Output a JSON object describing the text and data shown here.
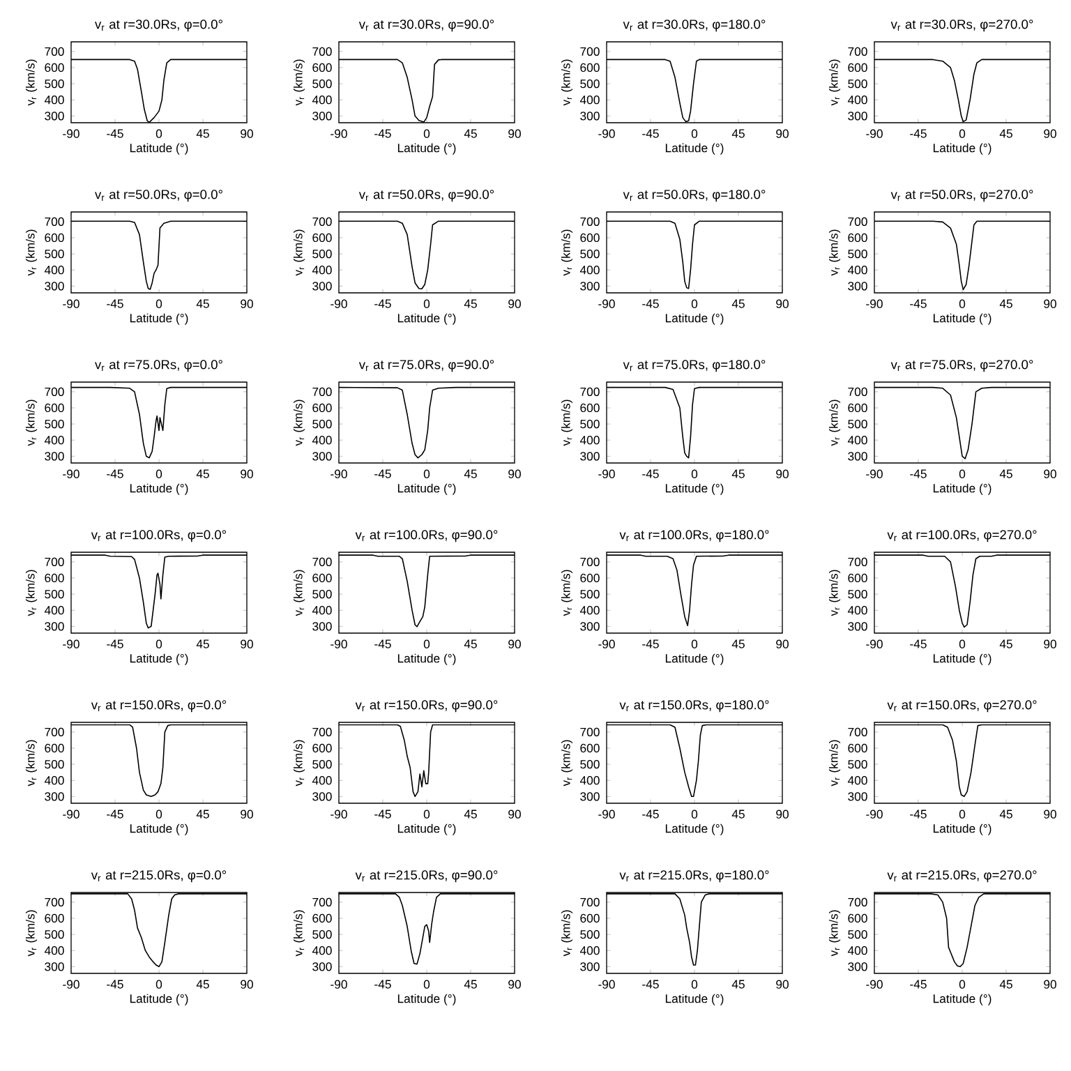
{
  "chart_data": [
    {
      "type": "line",
      "title": "v$_{r}$ at r=30.0Rs, φ=0.0°",
      "xlabel": "Latitude (°)",
      "ylabel": "v$_{r}$ (km/s)",
      "color": "#000000",
      "xlim": [
        -90,
        90
      ],
      "xticks": [
        -90,
        -45,
        0,
        45,
        90
      ],
      "ylim": [
        258,
        760
      ],
      "yticks": [
        300,
        400,
        500,
        600,
        700
      ],
      "x": [
        -90,
        -30,
        -25,
        -22,
        -18,
        -15,
        -12,
        -10,
        -5,
        0,
        3,
        5,
        8,
        12,
        90
      ],
      "values": [
        650,
        650,
        640,
        590,
        450,
        340,
        270,
        260,
        290,
        330,
        400,
        520,
        630,
        650,
        650
      ]
    },
    {
      "type": "line",
      "title": "v$_{r}$ at r=30.0Rs, φ=90.0°",
      "xlabel": "Latitude (°)",
      "ylabel": "v$_{r}$ (km/s)",
      "color": "#000000",
      "xlim": [
        -90,
        90
      ],
      "xticks": [
        -90,
        -45,
        0,
        45,
        90
      ],
      "ylim": [
        258,
        760
      ],
      "yticks": [
        300,
        400,
        500,
        600,
        700
      ],
      "x": [
        -90,
        -30,
        -25,
        -20,
        -15,
        -12,
        -8,
        -3,
        0,
        3,
        6,
        8,
        12,
        15,
        90
      ],
      "values": [
        650,
        650,
        630,
        540,
        400,
        300,
        272,
        262,
        290,
        360,
        420,
        620,
        648,
        650,
        650
      ]
    },
    {
      "type": "line",
      "title": "v$_{r}$ at r=30.0Rs, φ=180.0°",
      "xlabel": "Latitude (°)",
      "ylabel": "v$_{r}$ (km/s)",
      "color": "#000000",
      "xlim": [
        -90,
        90
      ],
      "xticks": [
        -90,
        -45,
        0,
        45,
        90
      ],
      "ylim": [
        258,
        760
      ],
      "yticks": [
        300,
        400,
        500,
        600,
        700
      ],
      "x": [
        -90,
        -30,
        -25,
        -20,
        -15,
        -12,
        -9,
        -6,
        -4,
        -1,
        2,
        5,
        90
      ],
      "values": [
        650,
        650,
        640,
        540,
        380,
        290,
        265,
        270,
        330,
        500,
        640,
        650,
        650
      ]
    },
    {
      "type": "line",
      "title": "v$_{r}$ at r=30.0Rs, φ=270.0°",
      "xlabel": "Latitude (°)",
      "ylabel": "v$_{r}$ (km/s)",
      "color": "#000000",
      "xlim": [
        -90,
        90
      ],
      "xticks": [
        -90,
        -45,
        0,
        45,
        90
      ],
      "ylim": [
        258,
        760
      ],
      "yticks": [
        300,
        400,
        500,
        600,
        700
      ],
      "x": [
        -90,
        -30,
        -20,
        -12,
        -8,
        -4,
        -1,
        1,
        4,
        8,
        12,
        15,
        20,
        90
      ],
      "values": [
        650,
        650,
        640,
        600,
        520,
        400,
        300,
        265,
        275,
        400,
        560,
        630,
        650,
        650
      ]
    },
    {
      "type": "line",
      "title": "v$_{r}$ at r=50.0Rs, φ=0.0°",
      "xlabel": "Latitude (°)",
      "ylabel": "v$_{r}$ (km/s)",
      "color": "#000000",
      "xlim": [
        -90,
        90
      ],
      "xticks": [
        -90,
        -45,
        0,
        45,
        90
      ],
      "ylim": [
        258,
        760
      ],
      "yticks": [
        300,
        400,
        500,
        600,
        700
      ],
      "x": [
        -90,
        -30,
        -25,
        -20,
        -16,
        -13,
        -11,
        -9,
        -7,
        -5,
        -3,
        -1,
        1,
        5,
        12,
        90
      ],
      "values": [
        703,
        703,
        695,
        620,
        450,
        330,
        285,
        280,
        320,
        380,
        400,
        430,
        660,
        690,
        703,
        703
      ]
    },
    {
      "type": "line",
      "title": "v$_{r}$ at r=50.0Rs, φ=90.0°",
      "xlabel": "Latitude (°)",
      "ylabel": "v$_{r}$ (km/s)",
      "color": "#000000",
      "xlim": [
        -90,
        90
      ],
      "xticks": [
        -90,
        -45,
        0,
        45,
        90
      ],
      "ylim": [
        258,
        760
      ],
      "yticks": [
        300,
        400,
        500,
        600,
        700
      ],
      "x": [
        -90,
        -30,
        -25,
        -20,
        -15,
        -12,
        -8,
        -5,
        -2,
        1,
        4,
        6,
        12,
        90
      ],
      "values": [
        703,
        703,
        690,
        620,
        420,
        320,
        285,
        283,
        310,
        400,
        560,
        680,
        703,
        703
      ]
    },
    {
      "type": "line",
      "title": "v$_{r}$ at r=50.0Rs, φ=180.0°",
      "xlabel": "Latitude (°)",
      "ylabel": "v$_{r}$ (km/s)",
      "color": "#000000",
      "xlim": [
        -90,
        90
      ],
      "xticks": [
        -90,
        -45,
        0,
        45,
        90
      ],
      "ylim": [
        258,
        760
      ],
      "yticks": [
        300,
        400,
        500,
        600,
        700
      ],
      "x": [
        -90,
        -25,
        -20,
        -15,
        -12,
        -10,
        -8,
        -6,
        -4,
        -2,
        0,
        5,
        90
      ],
      "values": [
        703,
        703,
        690,
        590,
        450,
        330,
        290,
        285,
        400,
        560,
        680,
        703,
        703
      ]
    },
    {
      "type": "line",
      "title": "v$_{r}$ at r=50.0Rs, φ=270.0°",
      "xlabel": "Latitude (°)",
      "ylabel": "v$_{r}$ (km/s)",
      "color": "#000000",
      "xlim": [
        -90,
        90
      ],
      "xticks": [
        -90,
        -45,
        0,
        45,
        90
      ],
      "ylim": [
        258,
        760
      ],
      "yticks": [
        300,
        400,
        500,
        600,
        700
      ],
      "x": [
        -90,
        -30,
        -20,
        -12,
        -6,
        -3,
        -1,
        1,
        4,
        7,
        10,
        12,
        15,
        90
      ],
      "values": [
        703,
        703,
        698,
        660,
        560,
        430,
        330,
        278,
        310,
        430,
        580,
        680,
        703,
        703
      ]
    },
    {
      "type": "line",
      "title": "v$_{r}$ at r=75.0Rs, φ=0.0°",
      "xlabel": "Latitude (°)",
      "ylabel": "v$_{r}$ (km/s)",
      "color": "#000000",
      "xlim": [
        -90,
        90
      ],
      "xticks": [
        -90,
        -45,
        0,
        45,
        90
      ],
      "ylim": [
        258,
        760
      ],
      "yticks": [
        300,
        400,
        500,
        600,
        700
      ],
      "x": [
        -90,
        -50,
        -30,
        -25,
        -20,
        -16,
        -13,
        -10,
        -7,
        -5,
        -3,
        -2,
        0,
        1,
        4,
        6,
        8,
        12,
        90
      ],
      "values": [
        727,
        727,
        722,
        700,
        560,
        380,
        300,
        290,
        330,
        420,
        520,
        550,
        460,
        540,
        460,
        620,
        720,
        727,
        727
      ]
    },
    {
      "type": "line",
      "title": "v$_{r}$ at r=75.0Rs, φ=90.0°",
      "xlabel": "Latitude (°)",
      "ylabel": "v$_{r}$ (km/s)",
      "color": "#000000",
      "xlim": [
        -90,
        90
      ],
      "xticks": [
        -90,
        -45,
        0,
        45,
        90
      ],
      "ylim": [
        258,
        760
      ],
      "yticks": [
        300,
        400,
        500,
        600,
        700
      ],
      "x": [
        -90,
        -30,
        -25,
        -20,
        -15,
        -12,
        -9,
        -5,
        -2,
        1,
        3,
        6,
        12,
        30,
        90
      ],
      "values": [
        727,
        725,
        710,
        560,
        380,
        310,
        290,
        310,
        340,
        460,
        600,
        710,
        722,
        727,
        727
      ]
    },
    {
      "type": "line",
      "title": "v$_{r}$ at r=75.0Rs, φ=180.0°",
      "xlabel": "Latitude (°)",
      "ylabel": "v$_{r}$ (km/s)",
      "color": "#000000",
      "xlim": [
        -90,
        90
      ],
      "xticks": [
        -90,
        -45,
        0,
        45,
        90
      ],
      "ylim": [
        258,
        760
      ],
      "yticks": [
        300,
        400,
        500,
        600,
        700
      ],
      "x": [
        -90,
        -30,
        -22,
        -15,
        -12,
        -10,
        -8,
        -6,
        -4,
        -2,
        0,
        5,
        90
      ],
      "values": [
        727,
        727,
        715,
        600,
        420,
        320,
        300,
        290,
        420,
        620,
        720,
        727,
        727
      ]
    },
    {
      "type": "line",
      "title": "v$_{r}$ at r=75.0Rs, φ=270.0°",
      "xlabel": "Latitude (°)",
      "ylabel": "v$_{r}$ (km/s)",
      "color": "#000000",
      "xlim": [
        -90,
        90
      ],
      "xticks": [
        -90,
        -45,
        0,
        45,
        90
      ],
      "ylim": [
        258,
        760
      ],
      "yticks": [
        300,
        400,
        500,
        600,
        700
      ],
      "x": [
        -90,
        -30,
        -20,
        -12,
        -6,
        -2,
        0,
        3,
        6,
        10,
        14,
        20,
        30,
        90
      ],
      "values": [
        727,
        727,
        722,
        680,
        540,
        380,
        300,
        285,
        340,
        500,
        700,
        722,
        727,
        727
      ]
    },
    {
      "type": "line",
      "title": "v$_{r}$ at r=100.0Rs, φ=0.0°",
      "xlabel": "Latitude (°)",
      "ylabel": "v$_{r}$ (km/s)",
      "color": "#000000",
      "xlim": [
        -90,
        90
      ],
      "xticks": [
        -90,
        -45,
        0,
        45,
        90
      ],
      "ylim": [
        258,
        760
      ],
      "yticks": [
        300,
        400,
        500,
        600,
        700
      ],
      "x": [
        -90,
        -55,
        -50,
        -28,
        -25,
        -20,
        -16,
        -13,
        -11,
        -8,
        -6,
        -4,
        -2,
        -1,
        1,
        2,
        4,
        6,
        10,
        40,
        45,
        90
      ],
      "values": [
        742,
        742,
        735,
        733,
        715,
        600,
        450,
        320,
        290,
        300,
        400,
        500,
        620,
        630,
        560,
        470,
        620,
        730,
        735,
        737,
        742,
        742
      ]
    },
    {
      "type": "line",
      "title": "v$_{r}$ at r=100.0Rs, φ=90.0°",
      "xlabel": "Latitude (°)",
      "ylabel": "v$_{r}$ (km/s)",
      "color": "#000000",
      "xlim": [
        -90,
        90
      ],
      "xticks": [
        -90,
        -45,
        0,
        45,
        90
      ],
      "ylim": [
        258,
        760
      ],
      "yticks": [
        300,
        400,
        500,
        600,
        700
      ],
      "x": [
        -90,
        -55,
        -50,
        -28,
        -25,
        -20,
        -15,
        -12,
        -10,
        -7,
        -4,
        -2,
        1,
        3,
        40,
        45,
        90
      ],
      "values": [
        742,
        742,
        735,
        735,
        720,
        580,
        400,
        310,
        298,
        330,
        360,
        420,
        620,
        735,
        737,
        742,
        742
      ]
    },
    {
      "type": "line",
      "title": "v$_{r}$ at r=100.0Rs, φ=180.0°",
      "xlabel": "Latitude (°)",
      "ylabel": "v$_{r}$ (km/s)",
      "color": "#000000",
      "xlim": [
        -90,
        90
      ],
      "xticks": [
        -90,
        -45,
        0,
        45,
        90
      ],
      "ylim": [
        258,
        760
      ],
      "yticks": [
        300,
        400,
        500,
        600,
        700
      ],
      "x": [
        -90,
        -55,
        -50,
        -28,
        -22,
        -18,
        -14,
        -10,
        -7,
        -5,
        -3,
        -1,
        2,
        30,
        35,
        90
      ],
      "values": [
        742,
        742,
        735,
        735,
        720,
        650,
        500,
        360,
        305,
        400,
        560,
        680,
        735,
        737,
        742,
        742
      ]
    },
    {
      "type": "line",
      "title": "v$_{r}$ at r=100.0Rs, φ=270.0°",
      "xlabel": "Latitude (°)",
      "ylabel": "v$_{r}$ (km/s)",
      "color": "#000000",
      "xlim": [
        -90,
        90
      ],
      "xticks": [
        -90,
        -45,
        0,
        45,
        90
      ],
      "ylim": [
        258,
        760
      ],
      "yticks": [
        300,
        400,
        500,
        600,
        700
      ],
      "x": [
        -90,
        -40,
        -35,
        -18,
        -12,
        -7,
        -3,
        0,
        2,
        5,
        8,
        11,
        14,
        18,
        30,
        35,
        90
      ],
      "values": [
        742,
        742,
        735,
        735,
        700,
        550,
        400,
        320,
        295,
        310,
        450,
        620,
        720,
        735,
        735,
        742,
        742
      ]
    },
    {
      "type": "line",
      "title": "v$_{r}$ at r=150.0Rs, φ=0.0°",
      "xlabel": "Latitude (°)",
      "ylabel": "v$_{r}$ (km/s)",
      "color": "#000000",
      "xlim": [
        -90,
        90
      ],
      "xticks": [
        -90,
        -45,
        0,
        45,
        90
      ],
      "ylim": [
        258,
        760
      ],
      "yticks": [
        300,
        400,
        500,
        600,
        700
      ],
      "x": [
        -90,
        -30,
        -27,
        -23,
        -20,
        -16,
        -13,
        -8,
        -4,
        -1,
        2,
        4,
        6,
        9,
        12,
        90
      ],
      "values": [
        745,
        745,
        730,
        600,
        450,
        340,
        310,
        300,
        310,
        330,
        380,
        480,
        700,
        740,
        745,
        745
      ]
    },
    {
      "type": "line",
      "title": "v$_{r}$ at r=150.0Rs, φ=90.0°",
      "xlabel": "Latitude (°)",
      "ylabel": "v$_{r}$ (km/s)",
      "color": "#000000",
      "xlim": [
        -90,
        90
      ],
      "xticks": [
        -90,
        -45,
        0,
        45,
        90
      ],
      "ylim": [
        258,
        760
      ],
      "yticks": [
        300,
        400,
        500,
        600,
        700
      ],
      "x": [
        -90,
        -30,
        -27,
        -23,
        -20,
        -17,
        -14,
        -12,
        -9,
        -7,
        -5,
        -3,
        -1,
        1,
        2,
        4,
        6,
        90
      ],
      "values": [
        745,
        745,
        735,
        650,
        550,
        480,
        330,
        300,
        330,
        440,
        360,
        460,
        380,
        380,
        450,
        700,
        745,
        745
      ]
    },
    {
      "type": "line",
      "title": "v$_{r}$ at r=150.0Rs, φ=180.0°",
      "xlabel": "Latitude (°)",
      "ylabel": "v$_{r}$ (km/s)",
      "color": "#000000",
      "xlim": [
        -90,
        90
      ],
      "xticks": [
        -90,
        -45,
        0,
        45,
        90
      ],
      "ylim": [
        258,
        760
      ],
      "yticks": [
        300,
        400,
        500,
        600,
        700
      ],
      "x": [
        -90,
        -25,
        -20,
        -15,
        -10,
        -6,
        -3,
        -1,
        2,
        4,
        6,
        8,
        12,
        90
      ],
      "values": [
        745,
        745,
        730,
        600,
        450,
        360,
        300,
        300,
        400,
        520,
        680,
        740,
        745,
        745
      ]
    },
    {
      "type": "line",
      "title": "v$_{r}$ at r=150.0Rs, φ=270.0°",
      "xlabel": "Latitude (°)",
      "ylabel": "v$_{r}$ (km/s)",
      "color": "#000000",
      "xlim": [
        -90,
        90
      ],
      "xticks": [
        -90,
        -45,
        0,
        45,
        90
      ],
      "ylim": [
        258,
        760
      ],
      "yticks": [
        300,
        400,
        500,
        600,
        700
      ],
      "x": [
        -90,
        -20,
        -15,
        -10,
        -6,
        -3,
        -1,
        2,
        5,
        9,
        13,
        16,
        20,
        90
      ],
      "values": [
        745,
        745,
        730,
        650,
        520,
        360,
        310,
        300,
        330,
        450,
        620,
        740,
        745,
        745
      ]
    },
    {
      "type": "line",
      "title": "v$_{r}$ at r=215.0Rs, φ=0.0°",
      "xlabel": "Latitude (°)",
      "ylabel": "v$_{r}$ (km/s)",
      "color": "#000000",
      "xlim": [
        -90,
        90
      ],
      "xticks": [
        -90,
        -45,
        0,
        45,
        90
      ],
      "ylim": [
        258,
        760
      ],
      "yticks": [
        300,
        400,
        500,
        600,
        700
      ],
      "x": [
        -90,
        -32,
        -28,
        -25,
        -22,
        -18,
        -14,
        -10,
        -6,
        -3,
        0,
        3,
        6,
        10,
        13,
        16,
        20,
        90
      ],
      "values": [
        752,
        752,
        720,
        650,
        540,
        480,
        400,
        360,
        330,
        310,
        300,
        330,
        450,
        620,
        720,
        745,
        752,
        752
      ]
    },
    {
      "type": "line",
      "title": "v$_{r}$ at r=215.0Rs, φ=90.0°",
      "xlabel": "Latitude (°)",
      "ylabel": "v$_{r}$ (km/s)",
      "color": "#000000",
      "xlim": [
        -90,
        90
      ],
      "xticks": [
        -90,
        -45,
        0,
        45,
        90
      ],
      "ylim": [
        258,
        760
      ],
      "yticks": [
        300,
        400,
        500,
        600,
        700
      ],
      "x": [
        -90,
        -32,
        -28,
        -25,
        -20,
        -16,
        -13,
        -10,
        -7,
        -4,
        -2,
        0,
        2,
        3,
        5,
        7,
        10,
        14,
        90
      ],
      "values": [
        752,
        752,
        730,
        680,
        550,
        400,
        320,
        315,
        380,
        480,
        550,
        560,
        520,
        450,
        560,
        640,
        730,
        752,
        752
      ]
    },
    {
      "type": "line",
      "title": "v$_{r}$ at r=215.0Rs, φ=180.0°",
      "xlabel": "Latitude (°)",
      "ylabel": "v$_{r}$ (km/s)",
      "color": "#000000",
      "xlim": [
        -90,
        90
      ],
      "xticks": [
        -90,
        -45,
        0,
        45,
        90
      ],
      "ylim": [
        258,
        760
      ],
      "yticks": [
        300,
        400,
        500,
        600,
        700
      ],
      "x": [
        -90,
        -20,
        -15,
        -10,
        -8,
        -5,
        -3,
        -1,
        1,
        3,
        5,
        7,
        11,
        15,
        90
      ],
      "values": [
        752,
        752,
        720,
        620,
        540,
        450,
        360,
        310,
        310,
        400,
        550,
        700,
        745,
        752,
        752
      ]
    },
    {
      "type": "line",
      "title": "v$_{r}$ at r=215.0Rs, φ=270.0°",
      "xlabel": "Latitude (°)",
      "ylabel": "v$_{r}$ (km/s)",
      "color": "#000000",
      "xlim": [
        -90,
        90
      ],
      "xticks": [
        -90,
        -45,
        0,
        45,
        90
      ],
      "ylim": [
        258,
        760
      ],
      "yticks": [
        300,
        400,
        500,
        600,
        700
      ],
      "x": [
        -90,
        -32,
        -25,
        -20,
        -16,
        -14,
        -12,
        -8,
        -5,
        -2,
        1,
        5,
        9,
        13,
        17,
        22,
        90
      ],
      "values": [
        752,
        752,
        745,
        700,
        600,
        420,
        390,
        330,
        305,
        300,
        320,
        420,
        550,
        680,
        730,
        752,
        752
      ]
    }
  ]
}
